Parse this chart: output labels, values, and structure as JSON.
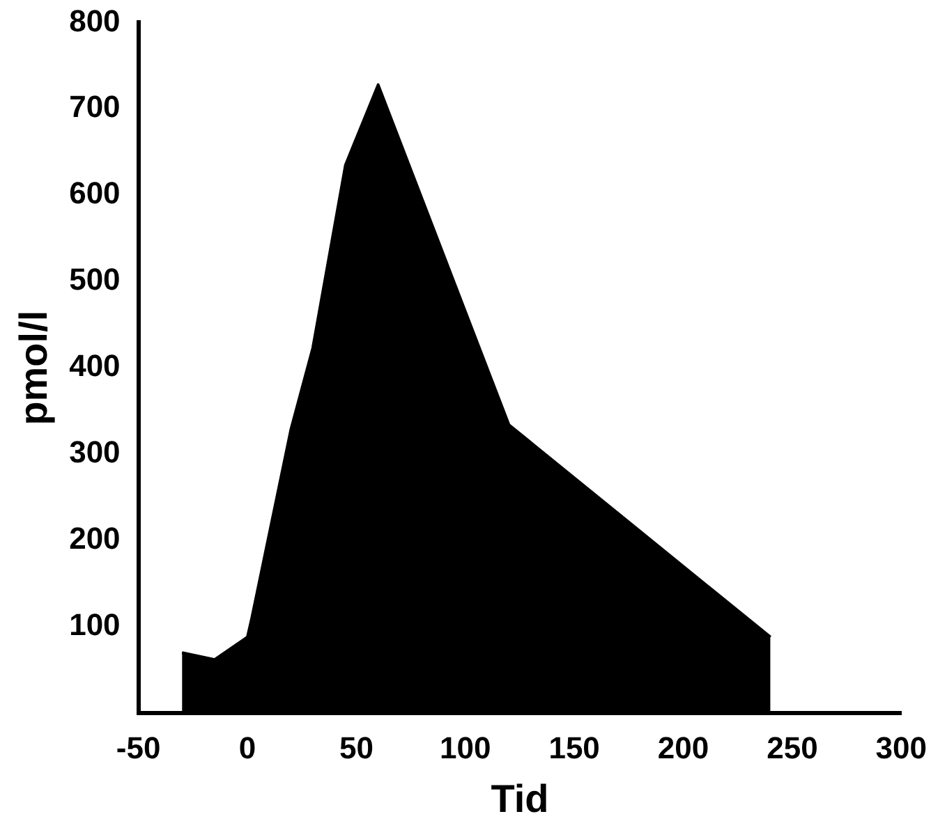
{
  "chart_data": {
    "type": "area",
    "xlabel": "Tid",
    "ylabel": "pmol/l",
    "x": [
      -30,
      -15,
      0,
      2,
      20,
      30,
      45,
      60,
      120,
      240
    ],
    "values": [
      70,
      62,
      88,
      110,
      329,
      423,
      635,
      728,
      334,
      88
    ],
    "color": "#000000",
    "xlim": [
      -50,
      300
    ],
    "xticks": [
      -50,
      0,
      50,
      100,
      150,
      200,
      250,
      300
    ],
    "ylim": [
      0,
      800
    ],
    "yticks": [
      100,
      200,
      300,
      400,
      500,
      600,
      700,
      800
    ],
    "grid": false,
    "legend": false,
    "marker": "none"
  }
}
